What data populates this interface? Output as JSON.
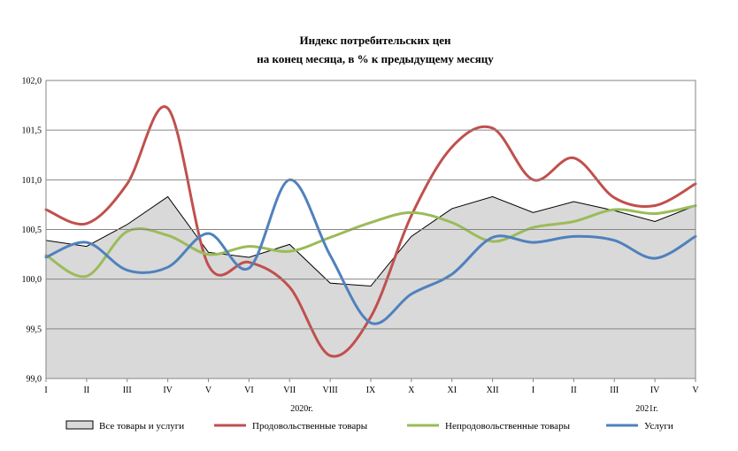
{
  "chart_data": {
    "type": "line",
    "title_lines": [
      "Индекс  потребительских  цен",
      "на конец  месяца, в % к предыдущему  месяцу"
    ],
    "xlabel": "",
    "ylabel": "",
    "categories": [
      "I",
      "II",
      "III",
      "IV",
      "V",
      "VI",
      "VII",
      "VIII",
      "IX",
      "X",
      "XI",
      "XII",
      "I",
      "II",
      "III",
      "IV",
      "V"
    ],
    "year_labels": [
      {
        "text": "2020г.",
        "at_index": 6.3
      },
      {
        "text": "2021г.",
        "at_index": 14.8
      }
    ],
    "ylim": [
      99.0,
      102.0
    ],
    "y_ticks": [
      "99,0",
      "99,5",
      "100,0",
      "100,5",
      "101,0",
      "101,5",
      "102,0"
    ],
    "grid": true,
    "legend_position": "bottom",
    "series": [
      {
        "name": "Все товары и услуги",
        "kind": "area",
        "color": "#d9d9d9",
        "stroke": "#000000",
        "values": [
          100.39,
          100.33,
          100.55,
          100.83,
          100.27,
          100.22,
          100.35,
          99.96,
          99.93,
          100.43,
          100.71,
          100.83,
          100.67,
          100.78,
          100.69,
          100.58,
          100.74
        ]
      },
      {
        "name": "Продовольственные товары",
        "kind": "line",
        "color": "#c0504d",
        "values": [
          100.7,
          100.56,
          100.96,
          101.72,
          100.14,
          100.17,
          99.92,
          99.23,
          99.62,
          100.64,
          101.33,
          101.52,
          101.0,
          101.22,
          100.82,
          100.74,
          100.96
        ]
      },
      {
        "name": "Непродовольственные товары",
        "kind": "line",
        "color": "#9bbb59",
        "values": [
          100.24,
          100.03,
          100.48,
          100.44,
          100.25,
          100.33,
          100.28,
          100.42,
          100.57,
          100.67,
          100.57,
          100.38,
          100.52,
          100.58,
          100.7,
          100.66,
          100.74
        ]
      },
      {
        "name": "Услуги",
        "kind": "line",
        "color": "#4f81bd",
        "values": [
          100.22,
          100.37,
          100.09,
          100.12,
          100.46,
          100.11,
          101.0,
          100.24,
          99.56,
          99.85,
          100.05,
          100.42,
          100.37,
          100.43,
          100.39,
          100.21,
          100.43
        ]
      }
    ]
  }
}
